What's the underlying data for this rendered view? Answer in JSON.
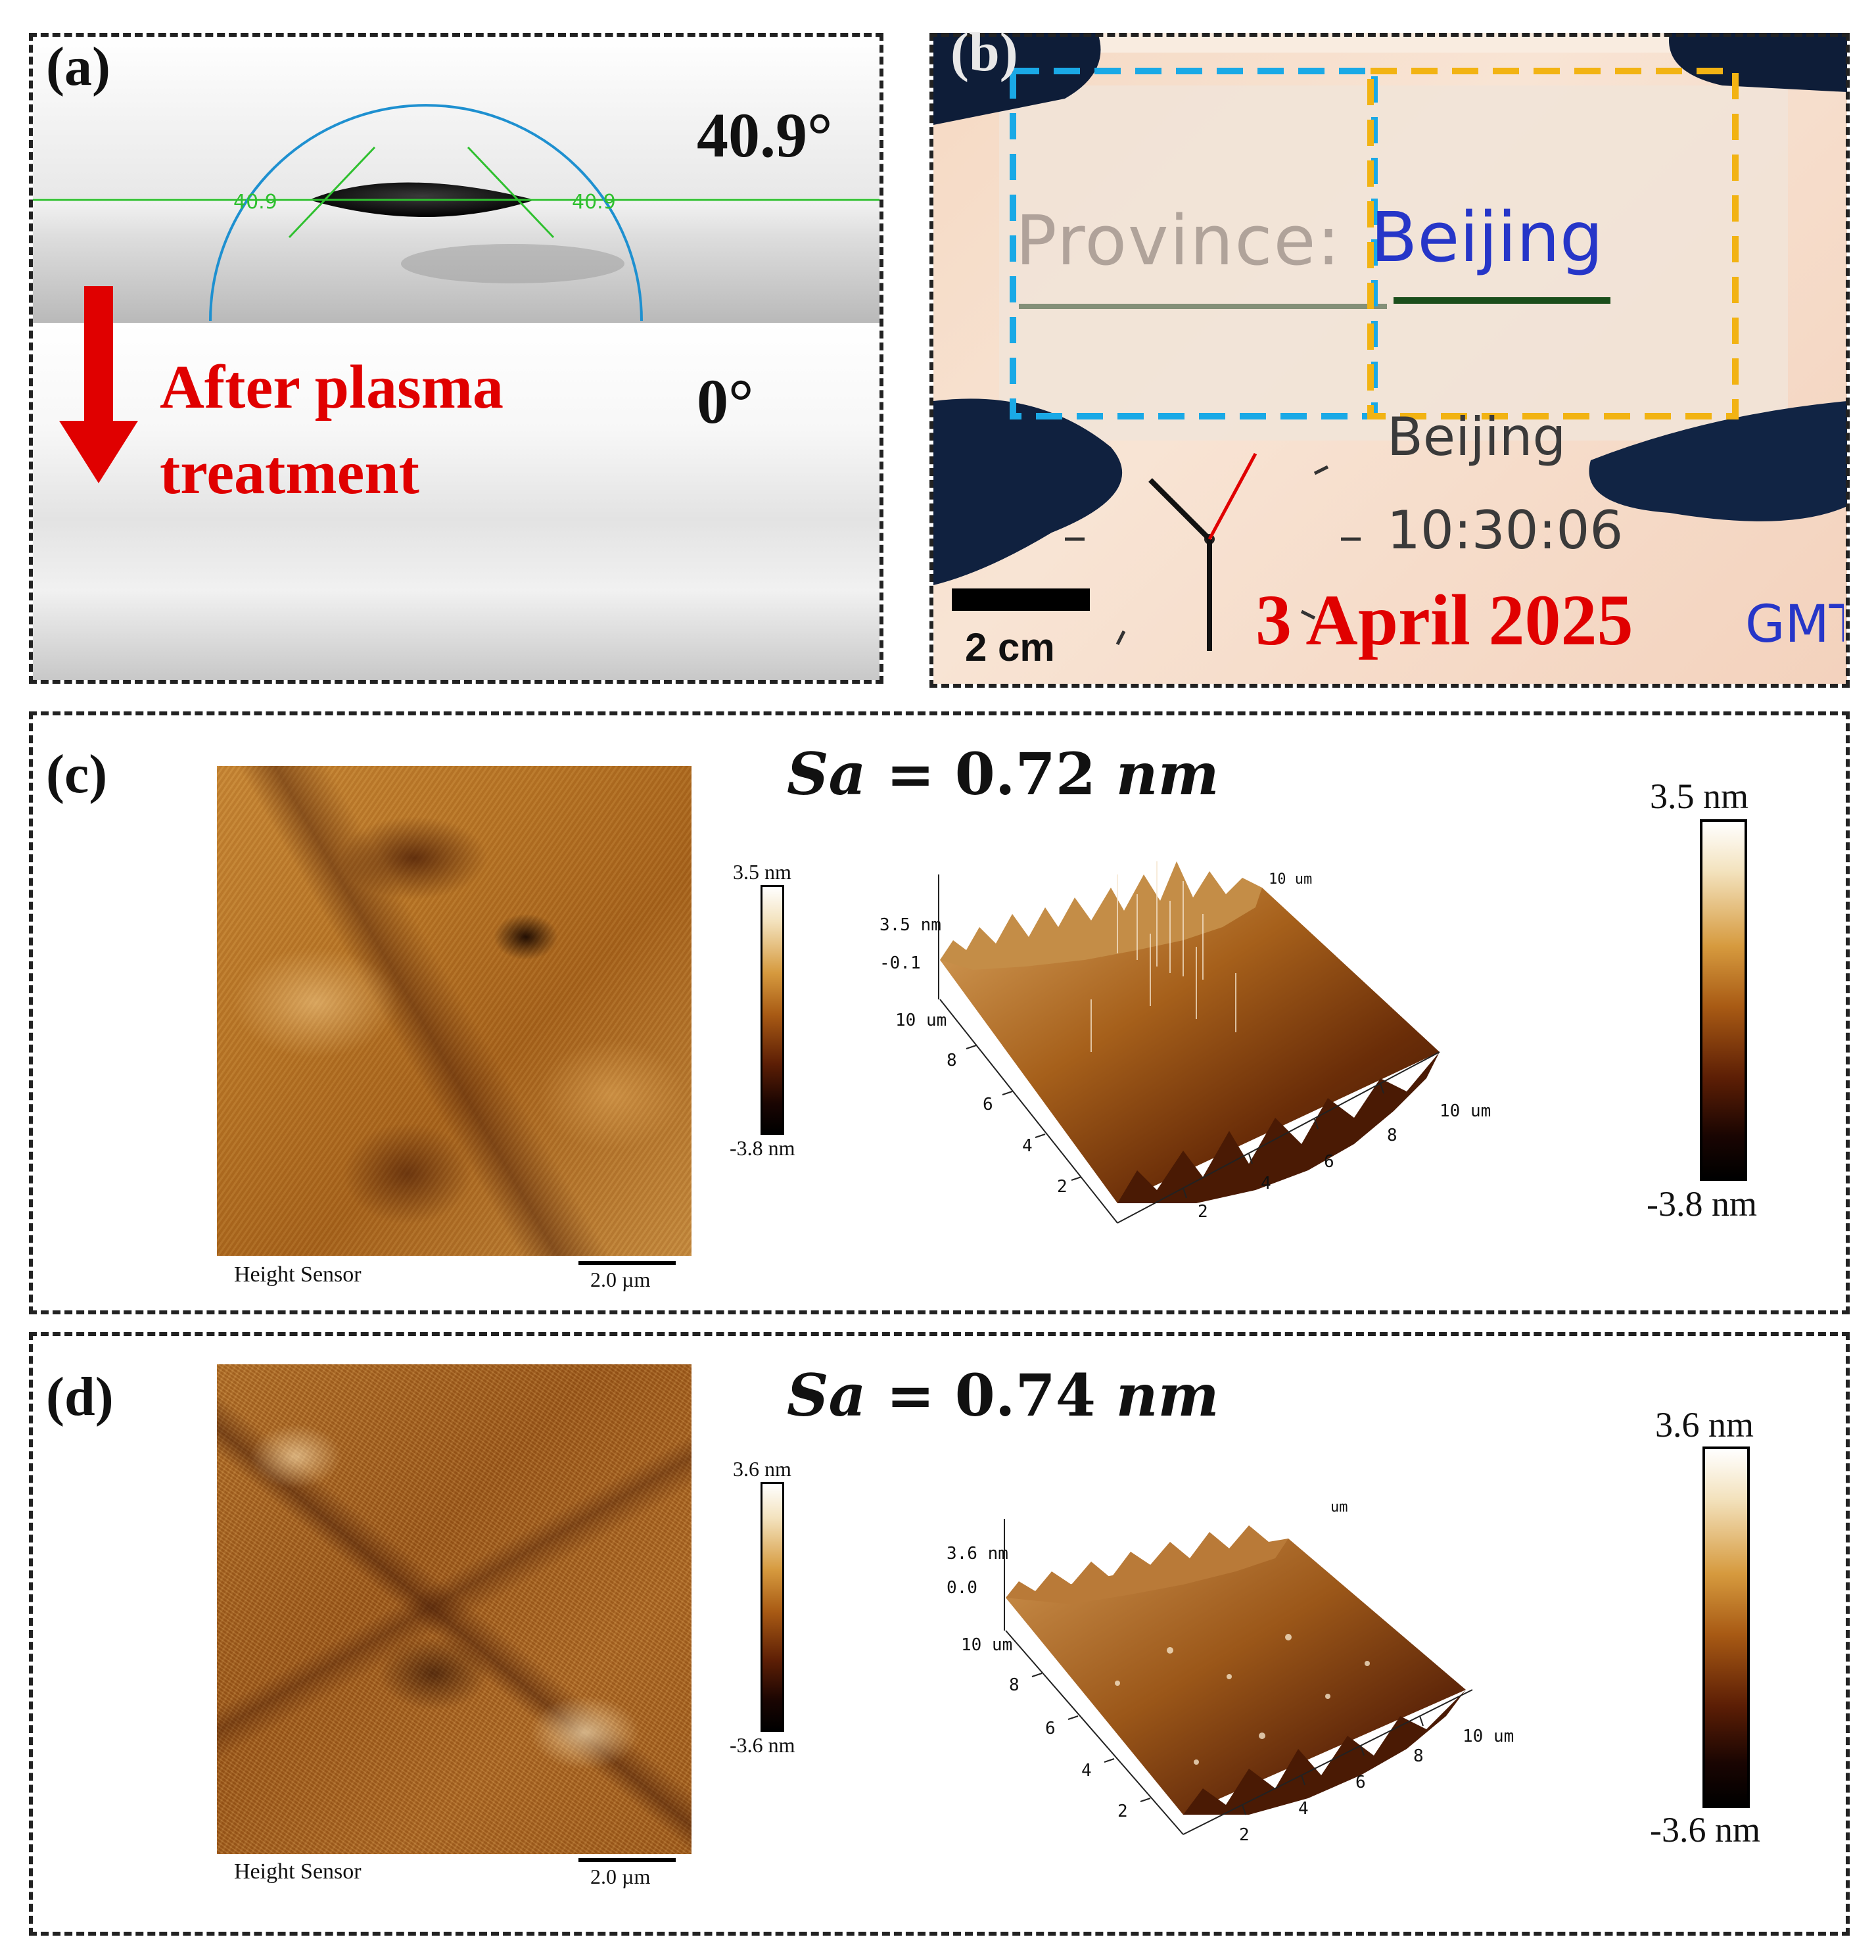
{
  "panel_a": {
    "label": "(a)",
    "angle_before": "40.9°",
    "angle_marker_left": "40.9",
    "angle_marker_right": "40.9",
    "treatment_text_line1": "After plasma",
    "treatment_text_line2": "treatment",
    "angle_after": "0°",
    "colors": {
      "arrow": "#e00000",
      "text_red": "#e00000",
      "fit_line": "#2fc02f",
      "fit_circle": "#1e90d0"
    }
  },
  "panel_b": {
    "label": "(b)",
    "screen_text_left": "Province:",
    "screen_text_right": "Beijing",
    "city": "Beijing",
    "time": "10:30:06",
    "date": "3 April 2025",
    "tz": "GMT",
    "scale_bar": "2 cm",
    "colors": {
      "blue_box": "#1aa9e6",
      "yellow_box": "#f2b313",
      "date_red": "#e00000"
    }
  },
  "panel_c": {
    "label": "(c)",
    "sa_symbol": "Sa",
    "sa_equals": "=",
    "sa_value": "0.72",
    "sa_unit": "nm",
    "cbar_small_max": "3.5 nm",
    "cbar_small_min": "-3.8 nm",
    "sensor_label": "Height Sensor",
    "scale_bar_label": "2.0 µm",
    "plot3d": {
      "z_top": "3.5 nm",
      "z_mid": "-0.1",
      "y_axis_label": "10 um",
      "y_ticks": [
        "8",
        "6",
        "4",
        "2"
      ],
      "x_ticks": [
        "2",
        "4",
        "6",
        "8"
      ],
      "x_axis_label": "10 um",
      "back_label": "10 um"
    },
    "cbar_big_max": "3.5 nm",
    "cbar_big_min": "-3.8 nm"
  },
  "panel_d": {
    "label": "(d)",
    "sa_symbol": "Sa",
    "sa_equals": "=",
    "sa_value": "0.74",
    "sa_unit": "nm",
    "cbar_small_max": "3.6 nm",
    "cbar_small_min": "-3.6 nm",
    "sensor_label": "Height Sensor",
    "scale_bar_label": "2.0 µm",
    "plot3d": {
      "z_top": "3.6 nm",
      "z_mid": "0.0",
      "y_axis_label": "10 um",
      "y_ticks": [
        "8",
        "6",
        "4",
        "2"
      ],
      "x_ticks": [
        "2",
        "4",
        "6",
        "8"
      ],
      "x_axis_label": "10 um",
      "back_label": "um"
    },
    "cbar_big_max": "3.6 nm",
    "cbar_big_min": "-3.6 nm"
  }
}
